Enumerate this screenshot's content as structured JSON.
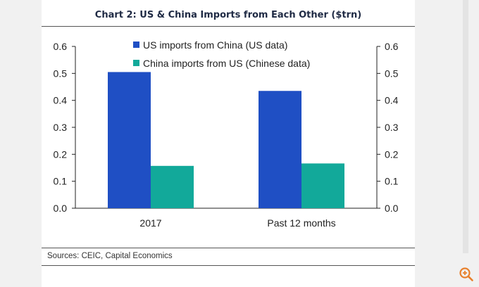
{
  "page": {
    "source": "Sources: CEIC, Capital Economics"
  },
  "chart_data": {
    "type": "bar",
    "title": "Chart 2: US & China Imports from Each Other ($trn)",
    "categories": [
      "2017",
      "Past 12 months"
    ],
    "series": [
      {
        "name": "US imports from China (US data)",
        "values": [
          0.505,
          0.435
        ],
        "color": "#1f4fc4"
      },
      {
        "name": "China imports from US (Chinese data)",
        "values": [
          0.157,
          0.166
        ],
        "color": "#12a99a"
      }
    ],
    "ylim": [
      0,
      0.6
    ],
    "yticks": [
      "0.0",
      "0.1",
      "0.2",
      "0.3",
      "0.4",
      "0.5",
      "0.6"
    ],
    "y2ticks": [
      "0.0",
      "0.1",
      "0.2",
      "0.3",
      "0.4",
      "0.5",
      "0.6"
    ],
    "legend": "top-center",
    "grid": false
  },
  "colors": {
    "zoom_icon": "#e8802c"
  },
  "icons": {
    "zoom": "zoom-in-icon"
  }
}
